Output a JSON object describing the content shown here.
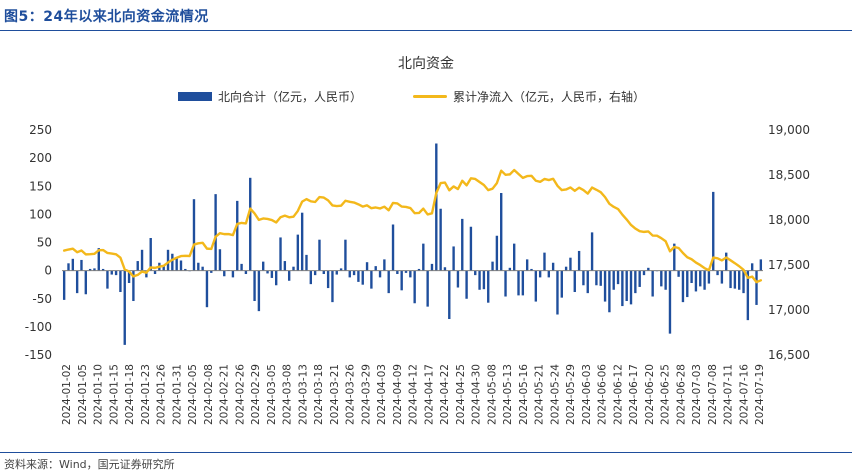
{
  "figure": {
    "title": "图5：24年以来北向资金流情况",
    "source": "资料来源：Wind，国元证券研究所"
  },
  "colors": {
    "bar": "#1f4e9c",
    "line": "#f3b81b",
    "accent": "#1f4e9c"
  },
  "chart_data": {
    "type": "bar+line",
    "title": "北向资金",
    "legend": [
      "北向合计（亿元，人民币）",
      "累计净流入（亿元，人民币，右轴）"
    ],
    "left_axis": {
      "min": -150,
      "max": 250,
      "ticks": [
        250,
        200,
        150,
        100,
        50,
        0,
        -50,
        -100,
        -150
      ]
    },
    "right_axis": {
      "min": 16500,
      "max": 19000,
      "ticks": [
        19000,
        18500,
        18000,
        17500,
        17000,
        16500
      ]
    },
    "x_tick_labels": [
      "2024-01-02",
      "2024-01-05",
      "2024-01-10",
      "2024-01-15",
      "2024-01-18",
      "2024-01-23",
      "2024-01-26",
      "2024-01-31",
      "2024-02-05",
      "2024-02-08",
      "2024-02-21",
      "2024-02-26",
      "2024-02-29",
      "2024-03-05",
      "2024-03-08",
      "2024-03-13",
      "2024-03-18",
      "2024-03-21",
      "2024-03-26",
      "2024-03-29",
      "2024-04-03",
      "2024-04-09",
      "2024-04-12",
      "2024-04-17",
      "2024-04-22",
      "2024-04-25",
      "2024-04-30",
      "2024-05-08",
      "2024-05-13",
      "2024-05-16",
      "2024-05-21",
      "2024-05-24",
      "2024-05-29",
      "2024-06-03",
      "2024-06-06",
      "2024-06-12",
      "2024-06-17",
      "2024-06-20",
      "2024-06-25",
      "2024-06-28",
      "2024-07-03",
      "2024-07-08",
      "2024-07-11",
      "2024-07-16",
      "2024-07-19"
    ],
    "series": [
      {
        "name": "北向合计（亿元，人民币）",
        "type": "bar",
        "axis": "left",
        "values": [
          -52,
          13,
          21,
          -40,
          19,
          -42,
          3,
          4,
          40,
          3,
          -32,
          -7,
          -8,
          -38,
          -132,
          -22,
          -54,
          17,
          37,
          -12,
          58,
          -6,
          14,
          10,
          37,
          30,
          23,
          18,
          3,
          -1,
          127,
          14,
          7,
          -65,
          -4,
          136,
          38,
          -10,
          1,
          -12,
          124,
          12,
          -6,
          165,
          -54,
          -72,
          16,
          -5,
          -13,
          -26,
          59,
          17,
          -18,
          7,
          64,
          103,
          28,
          -24,
          -8,
          55,
          -6,
          -31,
          -56,
          -7,
          4,
          55,
          -12,
          -8,
          -20,
          -25,
          15,
          -32,
          8,
          -12,
          20,
          -40,
          82,
          -6,
          -35,
          -4,
          -12,
          -58,
          3,
          48,
          -64,
          12,
          226,
          110,
          6,
          -86,
          43,
          -30,
          92,
          -50,
          78,
          -8,
          -34,
          -33,
          -57,
          16,
          62,
          138,
          -46,
          5,
          48,
          -44,
          -44,
          20,
          3,
          -55,
          -12,
          32,
          -12,
          14,
          -78,
          -48,
          7,
          23,
          -38,
          35,
          -26,
          -40,
          68,
          -26,
          -27,
          -55,
          -74,
          -34,
          -24,
          -63,
          -54,
          -60,
          -40,
          -29,
          -8,
          5,
          -46,
          -1,
          -28,
          -34,
          -112,
          48,
          -11,
          -56,
          -47,
          -22,
          -37,
          -28,
          -34,
          -23,
          140,
          -8,
          -23,
          32,
          -31,
          -32,
          -34,
          -40,
          -88,
          13,
          -61,
          20
        ]
      },
      {
        "name": "累计净流入（亿元，人民币，右轴）",
        "type": "line",
        "axis": "right",
        "values": [
          17660,
          17672,
          17681,
          17642,
          17661,
          17618,
          17620,
          17624,
          17664,
          17666,
          17634,
          17627,
          17619,
          17581,
          17450,
          17428,
          17373,
          17390,
          17427,
          17415,
          17473,
          17468,
          17481,
          17491,
          17528,
          17558,
          17581,
          17599,
          17602,
          17600,
          17727,
          17741,
          17747,
          17682,
          17678,
          17815,
          17853,
          17843,
          17844,
          17832,
          17956,
          17968,
          17962,
          18127,
          18073,
          18001,
          18017,
          18012,
          17999,
          17973,
          18031,
          18048,
          18030,
          18037,
          18101,
          18204,
          18232,
          18208,
          18200,
          18255,
          18249,
          18218,
          18162,
          18155,
          18159,
          18214,
          18202,
          18194,
          18174,
          18149,
          18163,
          18131,
          18139,
          18128,
          18148,
          18108,
          18190,
          18184,
          18149,
          18145,
          18133,
          18076,
          18078,
          18126,
          18062,
          18074,
          18300,
          18410,
          18416,
          18330,
          18373,
          18344,
          18436,
          18385,
          18463,
          18456,
          18422,
          18389,
          18332,
          18348,
          18410,
          18548,
          18502,
          18507,
          18555,
          18511,
          18468,
          18488,
          18491,
          18436,
          18424,
          18456,
          18444,
          18458,
          18380,
          18332,
          18339,
          18362,
          18324,
          18359,
          18333,
          18293,
          18361,
          18336,
          18309,
          18254,
          18180,
          18146,
          18122,
          18059,
          18005,
          17945,
          17905,
          17876,
          17868,
          17873,
          17827,
          17826,
          17798,
          17764,
          17652,
          17700,
          17689,
          17633,
          17586,
          17564,
          17527,
          17499,
          17465,
          17442,
          17582,
          17574,
          17551,
          17583,
          17552,
          17520,
          17486,
          17446,
          17358,
          17371,
          17310,
          17330
        ]
      }
    ]
  }
}
